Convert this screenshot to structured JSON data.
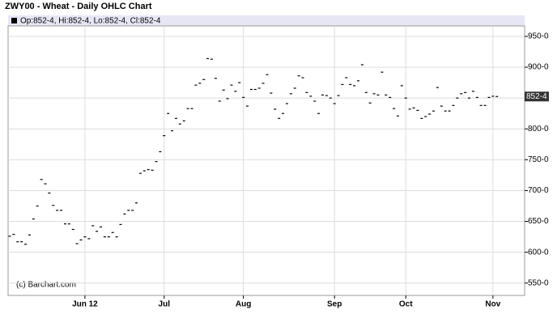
{
  "chart_data": {
    "type": "ohlc",
    "title": "ZWY00 - Wheat - Daily OHLC Chart",
    "legend_text": "Op:852-4, Hi:852-4, Lo:852-4, Cl:852-4",
    "source": "(c) Barchart.com",
    "color": "#000000",
    "last_price": {
      "value": 852.5,
      "label": "852-4"
    },
    "categories": [
      null,
      null,
      null,
      null,
      null,
      null,
      null,
      null,
      null,
      null,
      null,
      null,
      null,
      null,
      null,
      null,
      null,
      null,
      null,
      "Jun 12",
      null,
      null,
      null,
      null,
      null,
      null,
      null,
      null,
      null,
      null,
      null,
      null,
      null,
      null,
      null,
      null,
      null,
      null,
      null,
      "Jul",
      null,
      null,
      null,
      null,
      null,
      null,
      null,
      null,
      null,
      null,
      null,
      null,
      null,
      null,
      null,
      null,
      null,
      null,
      null,
      "Aug",
      null,
      null,
      null,
      null,
      null,
      null,
      null,
      null,
      null,
      null,
      null,
      null,
      null,
      null,
      null,
      null,
      null,
      null,
      null,
      null,
      null,
      null,
      "Sep",
      null,
      null,
      null,
      null,
      null,
      null,
      null,
      null,
      null,
      null,
      null,
      null,
      null,
      null,
      null,
      null,
      null,
      "Oct",
      null,
      null,
      null,
      null,
      null,
      null,
      null,
      null,
      null,
      null,
      null,
      null,
      null,
      null,
      null,
      null,
      null,
      null,
      null,
      null,
      null,
      "Nov",
      null
    ],
    "values": [
      626,
      629,
      617,
      617,
      613,
      628,
      654,
      675,
      718,
      711,
      696,
      676,
      668,
      668,
      646,
      646,
      637,
      614,
      620,
      625,
      622,
      643,
      634,
      641,
      625,
      625,
      632,
      625,
      645,
      662,
      668,
      668,
      680,
      728,
      732,
      734,
      733,
      747,
      763,
      789,
      825,
      797,
      817,
      808,
      813,
      833,
      833,
      871,
      874,
      880,
      914,
      913,
      882,
      845,
      863,
      849,
      871,
      861,
      875,
      851,
      837,
      864,
      864,
      866,
      874,
      888,
      858,
      832,
      817,
      825,
      841,
      857,
      866,
      886,
      883,
      859,
      853,
      845,
      825,
      855,
      854,
      850,
      841,
      854,
      872,
      883,
      872,
      870,
      878,
      904,
      859,
      842,
      857,
      855,
      892,
      855,
      851,
      833,
      821,
      870,
      850,
      832,
      834,
      830,
      817,
      820,
      824,
      829,
      867,
      837,
      829,
      829,
      838,
      850,
      857,
      859,
      850,
      861,
      851,
      838,
      838,
      851,
      853,
      852.5
    ],
    "ylim": [
      530,
      967
    ],
    "yticks": [
      {
        "value": 550,
        "label": "550-0"
      },
      {
        "value": 600,
        "label": "600-0"
      },
      {
        "value": 650,
        "label": "650-0"
      },
      {
        "value": 700,
        "label": "700-0"
      },
      {
        "value": 750,
        "label": "750-0"
      },
      {
        "value": 800,
        "label": "800-0"
      },
      {
        "value": 850,
        "label": "850-0"
      },
      {
        "value": 900,
        "label": "900-0"
      },
      {
        "value": 950,
        "label": "950-0"
      }
    ],
    "grid": true
  }
}
